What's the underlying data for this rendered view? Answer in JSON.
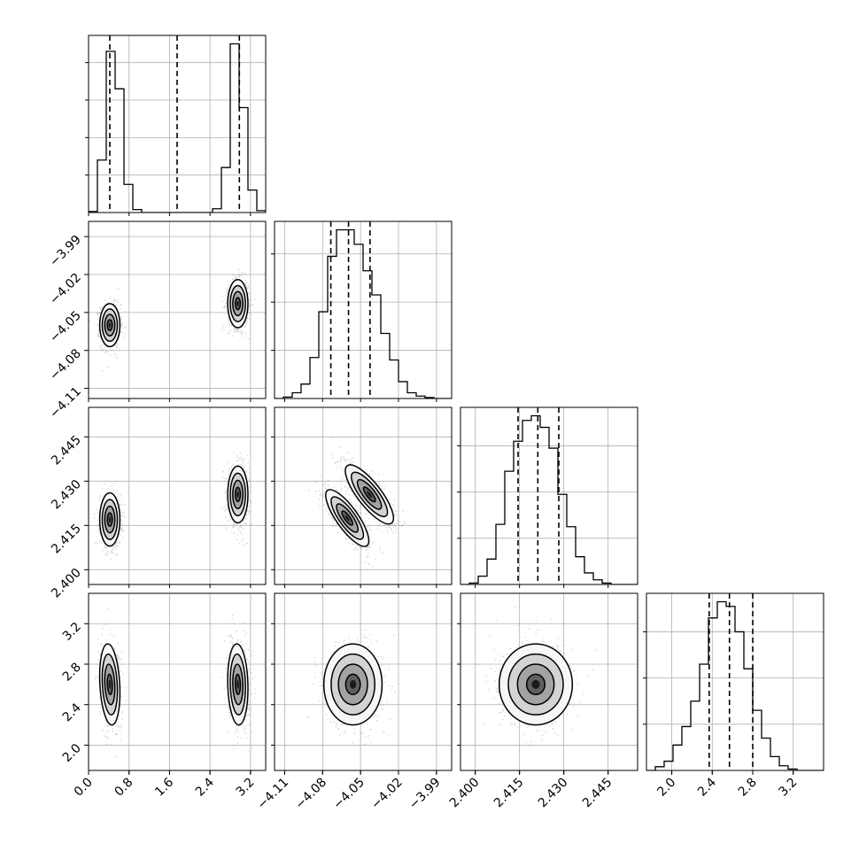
{
  "chart_data": {
    "type": "corner",
    "title": "",
    "parameters": [
      {
        "label": "",
        "range": [
          0,
          3.5
        ],
        "ticks": [
          0.0,
          0.8,
          1.6,
          2.4,
          3.2
        ],
        "tick_labels": [
          "0.0",
          "0.8",
          "1.6",
          "2.4",
          "3.2"
        ],
        "quantiles": [
          0.42,
          1.75,
          2.98
        ],
        "histogram": {
          "edges": [
            0.0,
            0.175,
            0.35,
            0.525,
            0.7,
            0.875,
            1.05,
            1.225,
            1.4,
            1.575,
            1.75,
            1.925,
            2.1,
            2.275,
            2.45,
            2.625,
            2.8,
            2.975,
            3.15,
            3.325,
            3.5
          ],
          "counts": [
            0.03,
            1.4,
            4.3,
            3.3,
            0.75,
            0.08,
            0.0,
            0.0,
            0.0,
            0.0,
            0.0,
            0.0,
            0.0,
            0.0,
            0.1,
            1.2,
            4.5,
            2.8,
            0.6,
            0.05
          ],
          "yticks": [
            1,
            2,
            3,
            4
          ]
        }
      },
      {
        "label": "",
        "range": [
          -4.118,
          -3.978
        ],
        "ticks": [
          -4.11,
          -4.08,
          -4.05,
          -4.02,
          -3.99
        ],
        "tick_labels": [
          "−4.11",
          "−4.08",
          "−4.05",
          "−4.02",
          "−3.99"
        ],
        "quantiles": [
          -4.0735,
          -4.0595,
          -4.0425
        ],
        "histogram": {
          "edges": [
            -4.118,
            -4.111,
            -4.104,
            -4.097,
            -4.09,
            -4.083,
            -4.076,
            -4.069,
            -4.062,
            -4.055,
            -4.048,
            -4.041,
            -4.034,
            -4.027,
            -4.02,
            -4.013,
            -4.006,
            -3.999,
            -3.992,
            -3.985,
            -3.978
          ],
          "counts": [
            0.0,
            0.03,
            0.12,
            0.3,
            0.85,
            1.8,
            2.95,
            3.5,
            3.5,
            3.2,
            2.65,
            2.15,
            1.35,
            0.8,
            0.35,
            0.12,
            0.05,
            0.02,
            0.0,
            0.0
          ],
          "yticks": [
            1,
            2,
            3
          ]
        }
      },
      {
        "label": "",
        "range": [
          2.395,
          2.455
        ],
        "ticks": [
          2.4,
          2.415,
          2.43,
          2.445
        ],
        "tick_labels": [
          "2.400",
          "2.415",
          "2.430",
          "2.445"
        ],
        "quantiles": [
          2.4145,
          2.4212,
          2.4283
        ],
        "histogram": {
          "edges": [
            2.395,
            2.398,
            2.401,
            2.404,
            2.407,
            2.41,
            2.413,
            2.416,
            2.419,
            2.422,
            2.425,
            2.428,
            2.431,
            2.434,
            2.437,
            2.44,
            2.443,
            2.446,
            2.449,
            2.452,
            2.455
          ],
          "counts": [
            0.0,
            0.03,
            0.18,
            0.55,
            1.3,
            2.45,
            3.1,
            3.55,
            3.65,
            3.4,
            2.95,
            1.95,
            1.25,
            0.6,
            0.25,
            0.1,
            0.03,
            0.0,
            0.0,
            0.0
          ],
          "yticks": [
            1,
            2,
            3
          ]
        }
      },
      {
        "label": "",
        "range": [
          1.75,
          3.5
        ],
        "ticks": [
          2.0,
          2.4,
          2.8,
          3.2
        ],
        "tick_labels": [
          "2.0",
          "2.4",
          "2.8",
          "3.2"
        ],
        "quantiles": [
          2.37,
          2.57,
          2.8
        ],
        "histogram": {
          "edges": [
            1.75,
            1.8375,
            1.925,
            2.0125,
            2.1,
            2.1875,
            2.275,
            2.3625,
            2.45,
            2.5375,
            2.625,
            2.7125,
            2.8,
            2.8875,
            2.975,
            3.0625,
            3.15,
            3.2375,
            3.325,
            3.4125,
            3.5
          ],
          "counts": [
            0.0,
            0.08,
            0.2,
            0.55,
            0.95,
            1.5,
            2.3,
            3.3,
            3.65,
            3.55,
            3.0,
            2.2,
            1.3,
            0.7,
            0.3,
            0.1,
            0.03,
            0.0,
            0.0,
            0.0
          ],
          "yticks": [
            1,
            2,
            3
          ]
        }
      }
    ],
    "pairs": [
      {
        "row": 1,
        "col": 0,
        "clusters": [
          {
            "mean": [
              0.42,
              -4.06
            ],
            "sd": [
              0.1,
              0.0085
            ],
            "rho": 0.0
          },
          {
            "mean": [
              2.95,
              -4.043
            ],
            "sd": [
              0.1,
              0.0095
            ],
            "rho": 0.0
          }
        ]
      },
      {
        "row": 2,
        "col": 0,
        "clusters": [
          {
            "mean": [
              0.42,
              2.417
            ],
            "sd": [
              0.1,
              0.0045
            ],
            "rho": 0.0
          },
          {
            "mean": [
              2.95,
              2.4255
            ],
            "sd": [
              0.1,
              0.0048
            ],
            "rho": 0.0
          }
        ]
      },
      {
        "row": 2,
        "col": 1,
        "clusters": [
          {
            "mean": [
              -4.0605,
              2.4175
            ],
            "sd": [
              0.0085,
              0.0048
            ],
            "rho": -0.8
          },
          {
            "mean": [
              -4.043,
              2.4255
            ],
            "sd": [
              0.0095,
              0.005
            ],
            "rho": -0.8
          }
        ]
      },
      {
        "row": 3,
        "col": 0,
        "clusters": [
          {
            "mean": [
              0.42,
              2.6
            ],
            "sd": [
              0.1,
              0.2
            ],
            "rho": -0.2
          },
          {
            "mean": [
              2.95,
              2.6
            ],
            "sd": [
              0.1,
              0.2
            ],
            "rho": -0.1
          }
        ]
      },
      {
        "row": 3,
        "col": 1,
        "clusters": [
          {
            "mean": [
              -4.056,
              2.6
            ],
            "sd": [
              0.0115,
              0.2
            ],
            "rho": 0.0
          }
        ]
      },
      {
        "row": 3,
        "col": 2,
        "clusters": [
          {
            "mean": [
              2.4205,
              2.6
            ],
            "sd": [
              0.0062,
              0.2
            ],
            "rho": 0.0
          }
        ]
      }
    ],
    "contour_levels_sigma": [
      0.5,
      1.0,
      1.5,
      2.0
    ],
    "grid": true
  }
}
